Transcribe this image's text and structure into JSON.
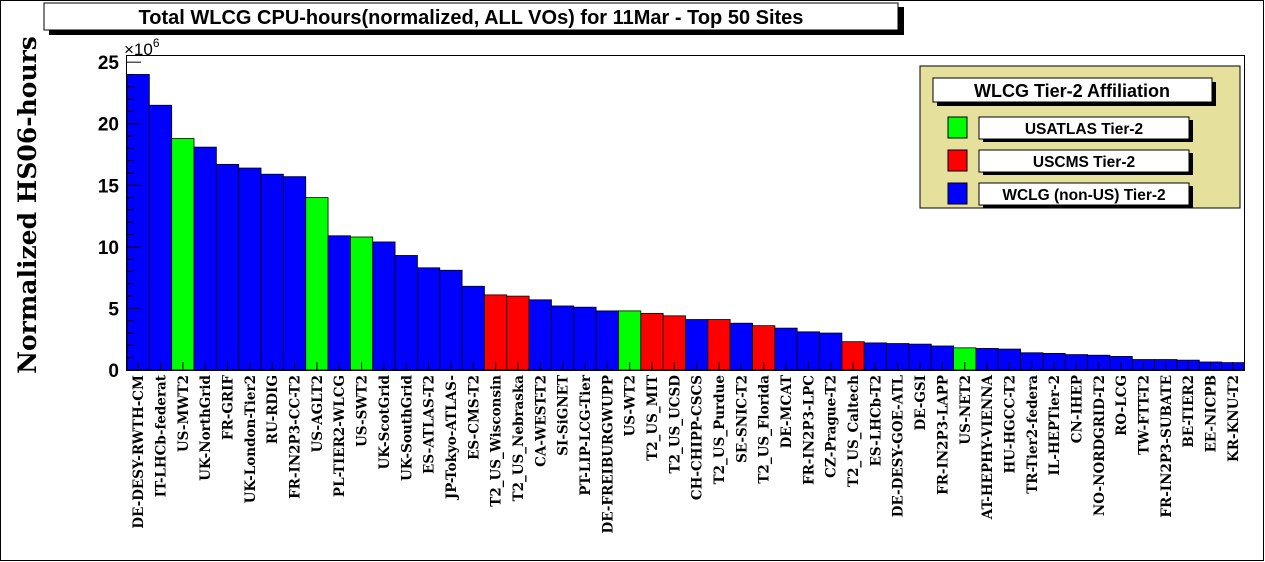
{
  "chart_data": {
    "type": "bar",
    "title": "Total WLCG CPU-hours(normalized, ALL VOs) for 11Mar - Top 50 Sites",
    "ylabel": "Normalized HS06-hours",
    "xlabel": "",
    "y_multiplier": "×10",
    "y_multiplier_exp": "6",
    "ylim": [
      0,
      25.5
    ],
    "yticks": [
      "0",
      "5",
      "10",
      "15",
      "20",
      "25"
    ],
    "grid": false,
    "legend_position": "top-right",
    "legend": {
      "title": "WLCG Tier-2 Affiliation",
      "entries": [
        {
          "label": "USATLAS Tier-2",
          "group": "usatlas",
          "color": "#00ff00"
        },
        {
          "label": "USCMS Tier-2",
          "group": "uscms",
          "color": "#ff0000"
        },
        {
          "label": "WCLG (non-US) Tier-2",
          "group": "wlcg",
          "color": "#0000ff"
        }
      ]
    },
    "categories": [
      "DE-DESY-RWTH-CM",
      "IT-LHCb-federat",
      "US-MWT2",
      "UK-NorthGrid",
      "FR-GRIF",
      "UK-London-Tier2",
      "RU-RDIG",
      "FR-IN2P3-CC-T2",
      "US-AGLT2",
      "PL-TIER2-WLCG",
      "US-SWT2",
      "UK-ScotGrid",
      "UK-SouthGrid",
      "ES-ATLAS-T2",
      "JP-Tokyo-ATLAS-",
      "ES-CMS-T2",
      "T2_US_Wisconsin",
      "T2_US_Nebraska",
      "CA-WEST-T2",
      "SI-SiGNET",
      "PT-LIP-LCG-Tier",
      "DE-FREIBURGWUPP",
      "US-WT2",
      "T2_US_MIT",
      "T2_US_UCSD",
      "CH-CHIPP-CSCS",
      "T2_US_Purdue",
      "SE-SNIC-T2",
      "T2_US_Florida",
      "DE-MCAT",
      "FR-IN2P3-LPC",
      "CZ-Prague-T2",
      "T2_US_Caltech",
      "ES-LHCb-T2",
      "DE-DESY-GOE-ATL",
      "DE-GSI",
      "FR-IN2P3-LAPP",
      "US-NET2",
      "AT-HEPHY-VIENNA",
      "HU-HGCC-T2",
      "TR-Tier2-federa",
      "IL-HEPTier-2",
      "CN-IHEP",
      "NO-NORDGRID-T2",
      "RO-LCG",
      "TW-FTT-T2",
      "FR-IN2P3-SUBATE",
      "BE-TIER2",
      "EE-NICPB",
      "KR-KNU-T2"
    ],
    "values": [
      24.0,
      21.5,
      18.8,
      18.1,
      16.7,
      16.4,
      15.9,
      15.7,
      14.0,
      10.9,
      10.8,
      10.4,
      9.3,
      8.3,
      8.1,
      6.8,
      6.1,
      6.0,
      5.7,
      5.2,
      5.1,
      4.8,
      4.8,
      4.6,
      4.4,
      4.1,
      4.1,
      3.8,
      3.6,
      3.4,
      3.1,
      3.0,
      2.3,
      2.2,
      2.15,
      2.1,
      1.95,
      1.8,
      1.75,
      1.7,
      1.4,
      1.35,
      1.25,
      1.2,
      1.1,
      0.85,
      0.85,
      0.8,
      0.65,
      0.6
    ],
    "groups": [
      "wlcg",
      "wlcg",
      "usatlas",
      "wlcg",
      "wlcg",
      "wlcg",
      "wlcg",
      "wlcg",
      "usatlas",
      "wlcg",
      "usatlas",
      "wlcg",
      "wlcg",
      "wlcg",
      "wlcg",
      "wlcg",
      "uscms",
      "uscms",
      "wlcg",
      "wlcg",
      "wlcg",
      "wlcg",
      "usatlas",
      "uscms",
      "uscms",
      "wlcg",
      "uscms",
      "wlcg",
      "uscms",
      "wlcg",
      "wlcg",
      "wlcg",
      "uscms",
      "wlcg",
      "wlcg",
      "wlcg",
      "wlcg",
      "usatlas",
      "wlcg",
      "wlcg",
      "wlcg",
      "wlcg",
      "wlcg",
      "wlcg",
      "wlcg",
      "wlcg",
      "wlcg",
      "wlcg",
      "wlcg",
      "wlcg"
    ]
  }
}
